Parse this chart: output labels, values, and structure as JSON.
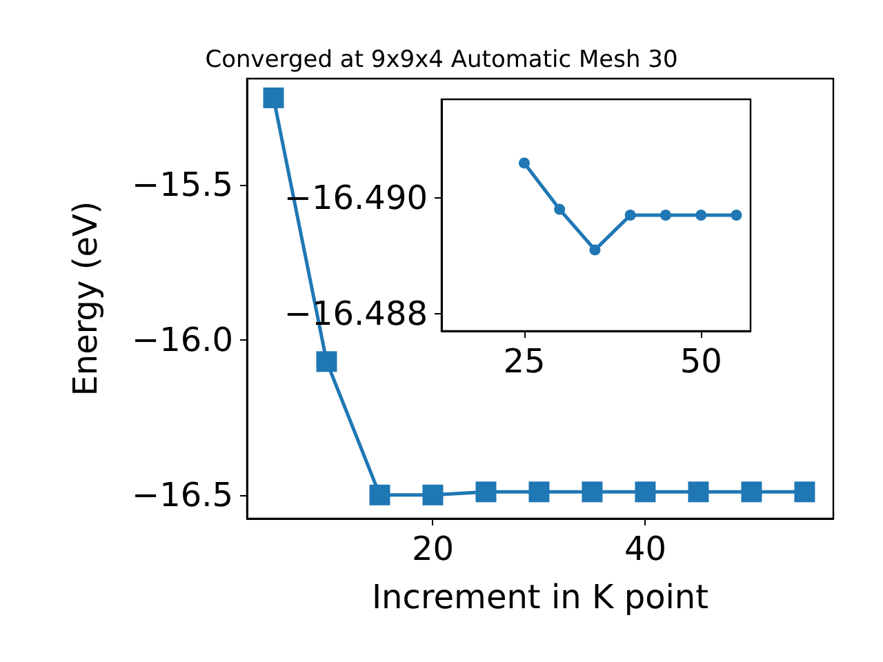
{
  "chart_data": [
    {
      "type": "line",
      "title": "Converged at 9x9x4 Automatic Mesh 30",
      "xlabel": "Increment in K point",
      "ylabel": "Energy (eV)",
      "x": [
        5,
        10,
        15,
        20,
        25,
        30,
        35,
        40,
        45,
        50,
        55
      ],
      "series": [
        {
          "color": "#1f77b4",
          "values": [
            -15.22,
            -16.07,
            -16.5,
            -16.5,
            -16.49,
            -16.49,
            -16.49,
            -16.49,
            -16.49,
            -16.49,
            -16.49
          ]
        }
      ],
      "xlim": [
        2.5,
        57.7
      ],
      "ylim": [
        -16.576,
        -15.158
      ],
      "xticks": [
        20,
        40
      ],
      "yticks": [
        {
          "value": -16.5,
          "label": "−16.5"
        },
        {
          "value": -16.0,
          "label": "−16.0"
        },
        {
          "value": -15.5,
          "label": "−15.5"
        }
      ],
      "marker": "square",
      "line_style": "solid",
      "grid": false
    },
    {
      "type": "line",
      "x": [
        25,
        30,
        35,
        40,
        45,
        50,
        55
      ],
      "series": [
        {
          "color": "#1f77b4",
          "values": [
            -16.4906,
            -16.4898,
            -16.4891,
            -16.4897,
            -16.4897,
            -16.4897,
            -16.4897
          ]
        }
      ],
      "xlim": [
        13.3,
        57
      ],
      "ylim": [
        -16.4877,
        -16.4917
      ],
      "xticks": [
        25,
        50
      ],
      "yticks": [
        {
          "value": -16.49,
          "label": "−16.490"
        },
        {
          "value": -16.488,
          "label": "−16.488"
        }
      ],
      "marker": "circle",
      "line_style": "solid",
      "grid": false
    }
  ]
}
